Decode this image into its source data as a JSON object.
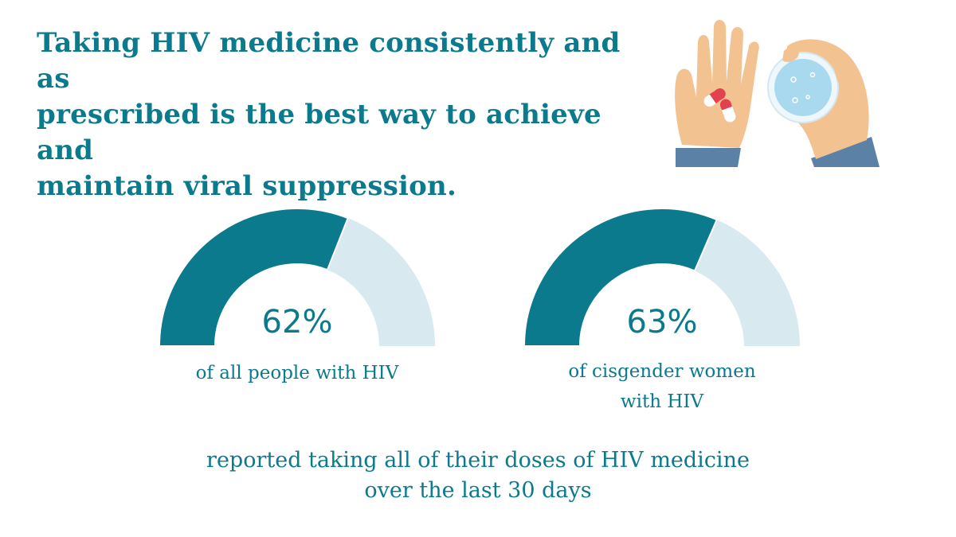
{
  "colors": {
    "accent": "#0a7a8c",
    "track": "#d8eaef",
    "text": "#0a7a8c",
    "skin": "#f2c391",
    "sleeve": "#5b82a6",
    "pill_red": "#e2424f",
    "water": "#a9d9ee",
    "glass_rim": "#eef7fb"
  },
  "headline": {
    "line1": "Taking HIV medicine consistently and as",
    "line2": "prescribed is the best way to achieve and",
    "line3": "maintain viral suppression."
  },
  "illustration": {
    "icon": "hands-pills-water-glass-icon"
  },
  "chart_data": {
    "type": "gauge",
    "range": [
      0,
      100
    ],
    "unit": "%",
    "series": [
      {
        "name": "all people with HIV",
        "value": 62,
        "value_label": "62%",
        "label_lines": [
          "of all people with HIV"
        ]
      },
      {
        "name": "cisgender women with HIV",
        "value": 63,
        "value_label": "63%",
        "label_lines": [
          "of cisgender women",
          "with HIV"
        ]
      }
    ],
    "caption": {
      "line1": "reported taking all of their doses of HIV medicine",
      "line2": "over the last 30 days"
    }
  }
}
